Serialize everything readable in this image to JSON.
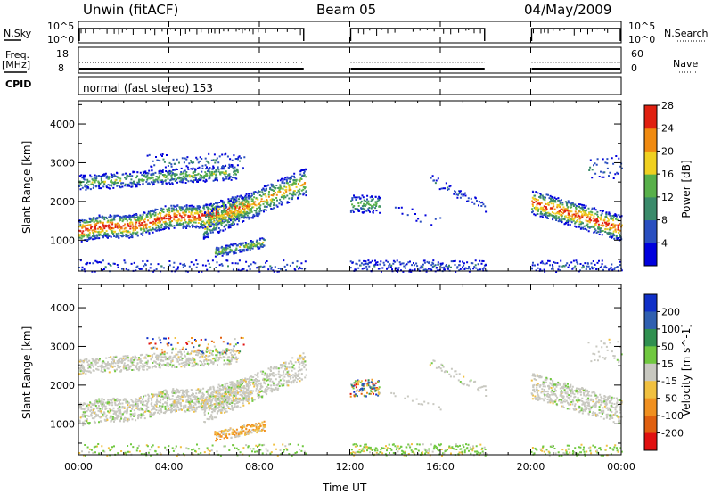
{
  "header": {
    "station": "Unwin (fitACF)",
    "beam": "Beam 05",
    "date": "04/May/2009"
  },
  "top_panels": {
    "nsky_label": "N.Sky",
    "nsky_ticks": [
      "10^5",
      "10^0"
    ],
    "nsearch_label": "N.Search",
    "nsearch_ticks": [
      "10^5",
      "10^0"
    ],
    "freq_label": "Freq.",
    "freq_unit": "[MHz]",
    "freq_ticks": [
      "18",
      "8"
    ],
    "nave_label": "Nave",
    "nave_ticks": [
      "60",
      "0"
    ],
    "cpid_label": "CPID",
    "cpid_value": "normal (fast stereo) 153"
  },
  "chart_data": [
    {
      "type": "heatmap",
      "name": "power",
      "ylabel": "Slant Range [km]",
      "yticks": [
        1000,
        2000,
        3000,
        4000
      ],
      "ylim": [
        200,
        4600
      ],
      "xlim": [
        0,
        24
      ],
      "colorbar_label": "Power [dB]",
      "colorbar_ticks": [
        "4",
        "8",
        "12",
        "16",
        "20",
        "24",
        "28"
      ],
      "colors": [
        "#0000dd",
        "#2a4fc0",
        "#3a8a6a",
        "#58b04a",
        "#f0d020",
        "#f08a10",
        "#e02010"
      ],
      "data_gaps_hours": [
        [
          10,
          12
        ],
        [
          18,
          20
        ]
      ]
    },
    {
      "type": "heatmap",
      "name": "velocity",
      "ylabel": "Slant Range [km]",
      "yticks": [
        1000,
        2000,
        3000,
        4000
      ],
      "ylim": [
        200,
        4600
      ],
      "xlim": [
        0,
        24
      ],
      "colorbar_label": "Velocity [m s^-1]",
      "colorbar_ticks": [
        "200",
        "100",
        "50",
        "15",
        "-15",
        "-50",
        "-100",
        "-200"
      ],
      "colors": [
        "#1030c8",
        "#3060b0",
        "#309050",
        "#70c840",
        "#c8c8c0",
        "#f0c040",
        "#f09020",
        "#e06010",
        "#e01010"
      ],
      "data_gaps_hours": [
        [
          10,
          12
        ],
        [
          18,
          20
        ]
      ]
    }
  ],
  "xaxis": {
    "label": "Time UT",
    "ticks": [
      "00:00",
      "04:00",
      "08:00",
      "12:00",
      "16:00",
      "20:00",
      "00:00"
    ]
  }
}
